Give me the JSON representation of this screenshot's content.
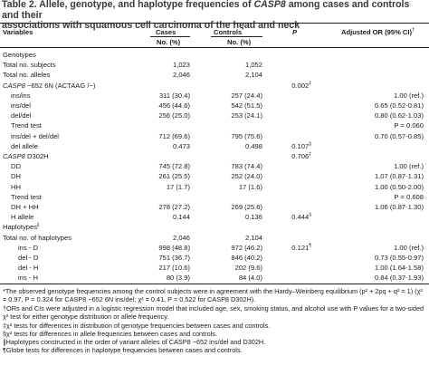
{
  "title": {
    "prefix": "Table 2.",
    "line1_a": "Allele, genotype, and haplotype frequencies of ",
    "gene": "CASP8",
    "line1_b": " among cases and controls and their",
    "line2": "associations with squamous cell carcinoma of the head and neck"
  },
  "headers": {
    "variables": "Variables",
    "cases": "Cases",
    "cases_sub": "No. (%)",
    "controls": "Controls",
    "controls_mark": "*",
    "controls_sub": "No. (%)",
    "p": "P",
    "or": "Adjusted OR (95% CI)",
    "or_mark": "†"
  },
  "rows": [
    {
      "label": "Genotypes",
      "indent": 0,
      "cases": "",
      "controls": "",
      "p": "",
      "p_mark": "",
      "or": ""
    },
    {
      "label": "Total no. subjects",
      "indent": 0,
      "cases": "1,023",
      "controls": "1,052",
      "p": "",
      "p_mark": "",
      "or": ""
    },
    {
      "label": "Total no. alleles",
      "indent": 0,
      "cases": "2,046",
      "controls": "2,104",
      "p": "",
      "p_mark": "",
      "or": ""
    },
    {
      "label": "CASP8 −652 6N (ACTAAG /−)",
      "indent": 0,
      "cases": "",
      "controls": "",
      "p": "0.002",
      "p_mark": "‡",
      "or": ""
    },
    {
      "label": "ins/ins",
      "indent": 1,
      "cases": "311 (30.4)",
      "controls": "257 (24.4)",
      "p": "",
      "p_mark": "",
      "or": "1.00 (ref.)"
    },
    {
      "label": "ins/del",
      "indent": 1,
      "cases": "456 (44.6)",
      "controls": "542 (51.5)",
      "p": "",
      "p_mark": "",
      "or": "0.65 (0.52-0.81)"
    },
    {
      "label": "del/del",
      "indent": 1,
      "cases": "256 (25.0)",
      "controls": "253 (24.1)",
      "p": "",
      "p_mark": "",
      "or": "0.80 (0.62-1.03)"
    },
    {
      "label": "Trend test",
      "indent": 1,
      "cases": "",
      "controls": "",
      "p": "",
      "p_mark": "",
      "or": "P = 0.060"
    },
    {
      "label": "ins/del + del/del",
      "indent": 1,
      "cases": "712 (69.6)",
      "controls": "795 (75.6)",
      "p": "",
      "p_mark": "",
      "or": "0.70 (0.57-0.85)"
    },
    {
      "label": "del allele",
      "indent": 1,
      "cases": "0.473",
      "controls": "0.498",
      "p": "0.107",
      "p_mark": "§",
      "or": ""
    },
    {
      "label": "CASP8 D302H",
      "indent": 0,
      "cases": "",
      "controls": "",
      "p": "0.706",
      "p_mark": "‡",
      "or": ""
    },
    {
      "label": "DD",
      "indent": 1,
      "cases": "745 (72.8)",
      "controls": "783 (74.4)",
      "p": "",
      "p_mark": "",
      "or": "1.00 (ref.)"
    },
    {
      "label": "DH",
      "indent": 1,
      "cases": "261 (25.5)",
      "controls": "252 (24.0)",
      "p": "",
      "p_mark": "",
      "or": "1.07 (0.87-1.31)"
    },
    {
      "label": "HH",
      "indent": 1,
      "cases": "17 (1.7)",
      "controls": "17 (1.6)",
      "p": "",
      "p_mark": "",
      "or": "1.00 (0.50-2.00)"
    },
    {
      "label": "Trend test",
      "indent": 1,
      "cases": "",
      "controls": "",
      "p": "",
      "p_mark": "",
      "or": "P = 0.608"
    },
    {
      "label": "DH + HH",
      "indent": 1,
      "cases": "278 (27.2)",
      "controls": "269 (25.6)",
      "p": "",
      "p_mark": "",
      "or": "1.06 (0.87-1.30)"
    },
    {
      "label": "H allele",
      "indent": 1,
      "cases": "0.144",
      "controls": "0.136",
      "p": "0.444",
      "p_mark": "§",
      "or": ""
    },
    {
      "label": "Haplotypes",
      "label_mark": "∥",
      "indent": 0,
      "cases": "",
      "controls": "",
      "p": "",
      "p_mark": "",
      "or": ""
    },
    {
      "label": "Total no. of haplotypes",
      "indent": 0,
      "cases": "2,046",
      "controls": "2,104",
      "p": "",
      "p_mark": "",
      "or": ""
    },
    {
      "label": "ins - D",
      "indent": 2,
      "cases": "998 (48.8)",
      "controls": "972 (46.2)",
      "p": "0.121",
      "p_mark": "¶",
      "or": "1.00 (ref.)"
    },
    {
      "label": "del - D",
      "indent": 2,
      "cases": "751 (36.7)",
      "controls": "846 (40.2)",
      "p": "",
      "p_mark": "",
      "or": "0.73 (0.55-0.97)"
    },
    {
      "label": "del - H",
      "indent": 2,
      "cases": "217 (10.6)",
      "controls": "202 (9.6)",
      "p": "",
      "p_mark": "",
      "or": "1.00 (1.64-1.58)"
    },
    {
      "label": "ins - H",
      "indent": 2,
      "cases": "80 (3.9)",
      "controls": "84 (4.0)",
      "p": "",
      "p_mark": "",
      "or": "0.84 (0.37-1.93)"
    }
  ],
  "footnotes": [
    "*The observed genotype frequencies among the control subjects were in agreement with the Hardy–Weinberg equilibrium (p² + 2pq + q² = 1) (χ² = 0.97, P = 0.324 for CASP8 −652 6N ins/del; χ² = 0.41, P = 0.522 for CASP8 D302H).",
    "†ORs and CIs were adjusted in a logistic regression model that included age, sex, smoking status, and alcohol use with P values for a two-sided χ² test for either genotype distribution or allele frequency.",
    "‡χ² tests for differences in distribution of genotype frequencies between cases and controls.",
    "§χ² tests for differences in allele frequencies between cases and controls.",
    "∥Haplotypes constructed in the order of variant alleles of CASP8 −652 ins/del and D302H.",
    "¶Globe tests for differences in haplotype frequencies between cases and controls."
  ]
}
